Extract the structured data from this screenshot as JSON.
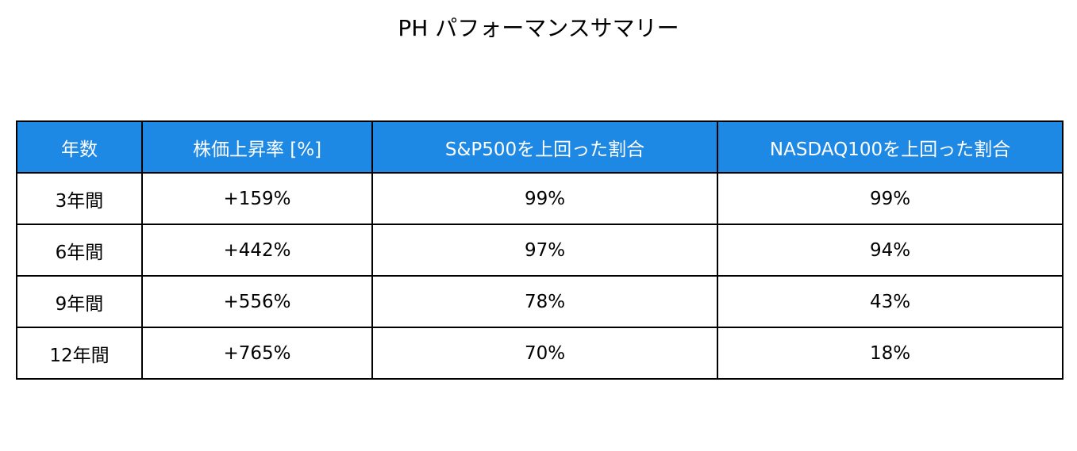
{
  "header": {
    "title": "PH パフォーマンスサマリー"
  },
  "table": {
    "columns": [
      "年数",
      "株価上昇率 [%]",
      "S&P500を上回った割合",
      "NASDAQ100を上回った割合"
    ],
    "rows": [
      [
        "3年間",
        "+159%",
        "99%",
        "99%"
      ],
      [
        "6年間",
        "+442%",
        "97%",
        "94%"
      ],
      [
        "9年間",
        "+556%",
        "78%",
        "43%"
      ],
      [
        "12年間",
        "+765%",
        "70%",
        "18%"
      ]
    ]
  }
}
